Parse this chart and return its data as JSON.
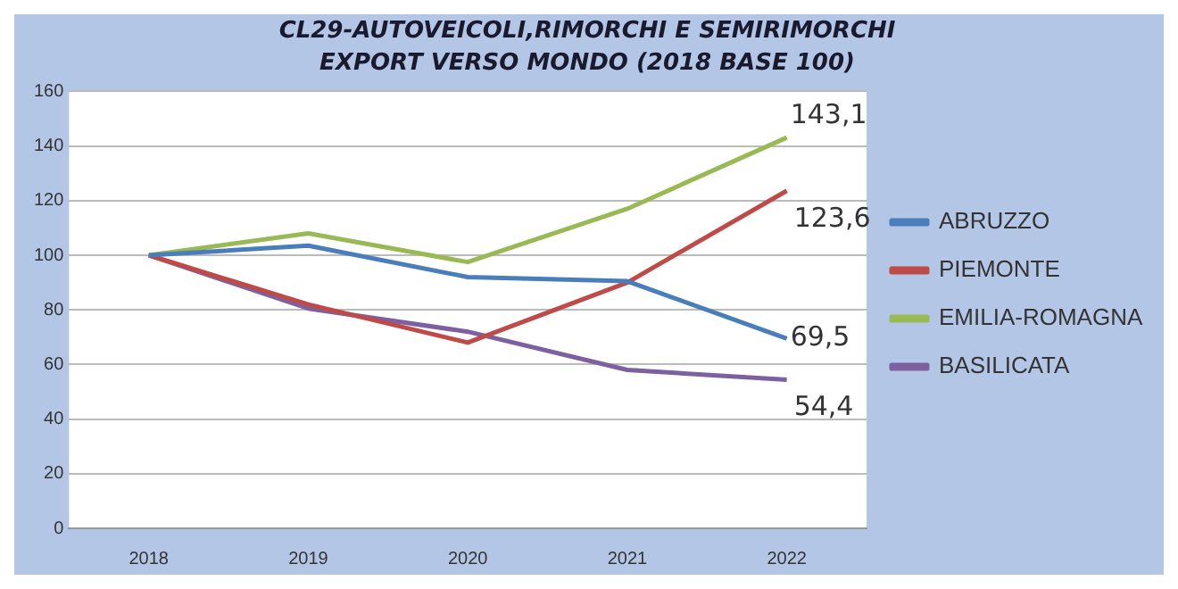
{
  "chart_data": {
    "type": "line",
    "title": "CL29-AUTOVEICOLI,RIMORCHI E SEMIRIMORCHI",
    "subtitle": "EXPORT VERSO MONDO (2018 BASE 100)",
    "categories": [
      "2018",
      "2019",
      "2020",
      "2021",
      "2022"
    ],
    "series": [
      {
        "name": "ABRUZZO",
        "color": "#4a7ebb",
        "values": [
          100,
          103.5,
          92,
          90.5,
          69.5
        ],
        "value_labels": [
          null,
          null,
          null,
          null,
          "69,5"
        ]
      },
      {
        "name": "PIEMONTE",
        "color": "#be4b48",
        "values": [
          100,
          82,
          68,
          90,
          123.6
        ],
        "value_labels": [
          null,
          null,
          null,
          null,
          "123,6"
        ]
      },
      {
        "name": "EMILIA-ROMAGNA",
        "color": "#98b954",
        "values": [
          100,
          108,
          97.5,
          117,
          143.1
        ],
        "value_labels": [
          null,
          null,
          null,
          null,
          "143,1"
        ]
      },
      {
        "name": "BASILICATA",
        "color": "#7d60a0",
        "values": [
          100,
          80.5,
          72,
          58,
          54.4
        ],
        "value_labels": [
          null,
          null,
          null,
          null,
          "54,4"
        ]
      }
    ],
    "ylim": [
      0,
      160
    ],
    "yticks": [
      0,
      20,
      40,
      60,
      80,
      100,
      120,
      140,
      160
    ],
    "grid": "y",
    "legend": "right",
    "marker": "none",
    "line_style": "solid"
  }
}
